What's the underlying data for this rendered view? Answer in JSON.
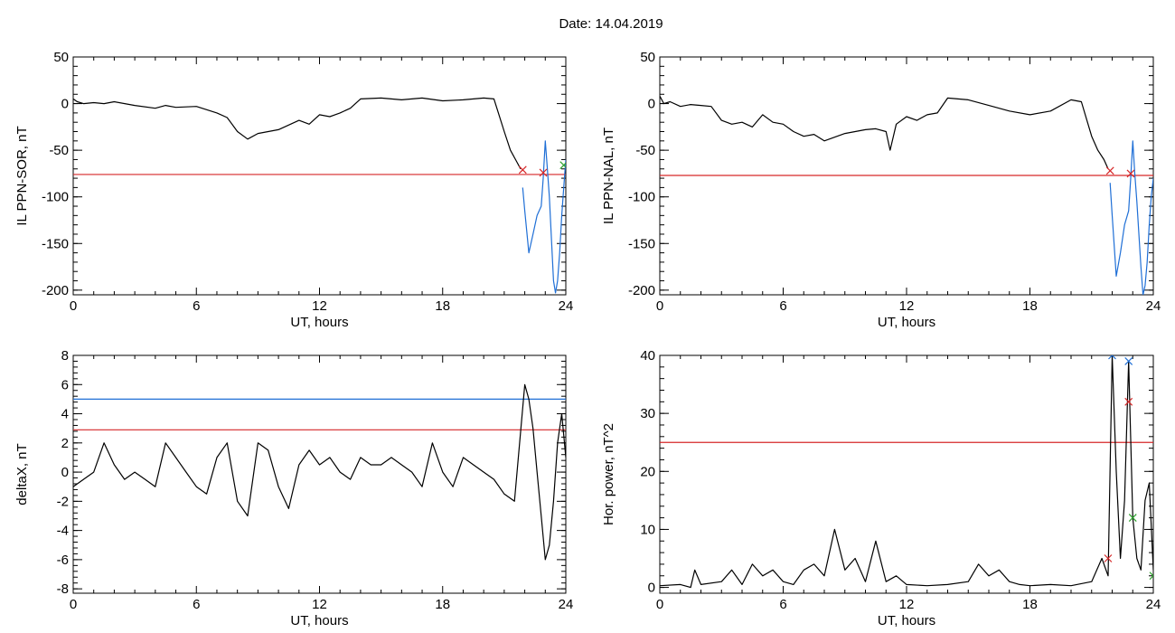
{
  "title": "Date:  14.04.2019",
  "colors": {
    "threshold": "#d62728",
    "upper": "#1f6fd6",
    "trace": "#000000",
    "marker_alt": "#2ca02c"
  },
  "chart_data": [
    {
      "type": "line",
      "ylabel": "IL PPN-SOR, nT",
      "xlabel": "UT, hours",
      "xlim": [
        0,
        24
      ],
      "ylim": [
        -205,
        50
      ],
      "xticks": [
        0,
        6,
        12,
        18,
        24
      ],
      "yticks": [
        -200,
        -150,
        -100,
        -50,
        0,
        50
      ],
      "series": [
        {
          "color": "#000000",
          "x": [
            0,
            0.2,
            0.5,
            1,
            1.5,
            2,
            3,
            4,
            4.5,
            5,
            6,
            7,
            7.5,
            8,
            8.5,
            9,
            10,
            11,
            11.5,
            12,
            12.5,
            13,
            13.5,
            14,
            15,
            16,
            17,
            18,
            19,
            20,
            20.5,
            21,
            21.3,
            21.6,
            21.8
          ],
          "y": [
            5,
            2,
            0,
            1,
            0,
            2,
            -2,
            -5,
            -2,
            -4,
            -3,
            -10,
            -15,
            -30,
            -38,
            -32,
            -28,
            -18,
            -22,
            -12,
            -14,
            -10,
            -5,
            5,
            6,
            4,
            6,
            3,
            4,
            6,
            5,
            -30,
            -50,
            -62,
            -70
          ]
        },
        {
          "color": "#1f6fd6",
          "x": [
            21.9,
            22,
            22.2,
            22.4,
            22.6,
            22.8,
            22.9,
            23,
            23.1,
            23.2,
            23.4,
            23.5,
            23.6,
            23.7,
            23.8,
            23.9,
            24
          ],
          "y": [
            -90,
            -115,
            -160,
            -140,
            -120,
            -110,
            -80,
            -40,
            -70,
            -100,
            -190,
            -203,
            -190,
            -160,
            -120,
            -90,
            -60
          ]
        }
      ],
      "hlines": [
        {
          "y": -76,
          "color": "#d62728"
        }
      ],
      "markers": [
        {
          "x": 21.9,
          "y": -71,
          "color": "#d62728"
        },
        {
          "x": 22.9,
          "y": -74,
          "color": "#d62728"
        },
        {
          "x": 23.9,
          "y": -66,
          "color": "#2ca02c"
        }
      ]
    },
    {
      "type": "line",
      "ylabel": "IL PPN-NAL, nT",
      "xlabel": "UT, hours",
      "xlim": [
        0,
        24
      ],
      "ylim": [
        -205,
        50
      ],
      "xticks": [
        0,
        6,
        12,
        18,
        24
      ],
      "yticks": [
        -200,
        -150,
        -100,
        -50,
        0,
        50
      ],
      "series": [
        {
          "color": "#000000",
          "x": [
            0,
            0.2,
            0.5,
            1,
            1.5,
            2,
            2.5,
            3,
            3.5,
            4,
            4.5,
            5,
            5.5,
            6,
            6.5,
            7,
            7.5,
            8,
            9,
            10,
            10.5,
            11,
            11.2,
            11.5,
            12,
            12.5,
            13,
            13.5,
            14,
            15,
            16,
            17,
            18,
            19,
            20,
            20.5,
            21,
            21.3,
            21.6,
            21.8
          ],
          "y": [
            8,
            0,
            2,
            -3,
            -1,
            -2,
            -3,
            -18,
            -22,
            -20,
            -25,
            -12,
            -20,
            -22,
            -30,
            -35,
            -33,
            -40,
            -32,
            -28,
            -27,
            -30,
            -50,
            -22,
            -14,
            -18,
            -12,
            -10,
            6,
            4,
            -2,
            -8,
            -12,
            -8,
            4,
            2,
            -35,
            -50,
            -60,
            -70
          ]
        },
        {
          "color": "#1f6fd6",
          "x": [
            21.9,
            22,
            22.2,
            22.4,
            22.6,
            22.8,
            22.9,
            23,
            23.1,
            23.2,
            23.4,
            23.5,
            23.6,
            23.7,
            23.8,
            23.9,
            24
          ],
          "y": [
            -85,
            -120,
            -185,
            -160,
            -130,
            -115,
            -80,
            -40,
            -75,
            -105,
            -175,
            -205,
            -195,
            -170,
            -130,
            -100,
            -80
          ]
        }
      ],
      "hlines": [
        {
          "y": -77,
          "color": "#d62728"
        }
      ],
      "markers": [
        {
          "x": 21.9,
          "y": -72,
          "color": "#d62728"
        },
        {
          "x": 22.9,
          "y": -75,
          "color": "#d62728"
        }
      ]
    },
    {
      "type": "line",
      "ylabel": "deltaX, nT",
      "xlabel": "UT, hours",
      "xlim": [
        0,
        24
      ],
      "ylim": [
        -8.3,
        8
      ],
      "xticks": [
        0,
        6,
        12,
        18,
        24
      ],
      "yticks": [
        -8,
        -6,
        -4,
        -2,
        0,
        2,
        4,
        6,
        8
      ],
      "series": [
        {
          "color": "#000000",
          "x": [
            0,
            0.5,
            1,
            1.5,
            2,
            2.5,
            3,
            3.5,
            4,
            4.5,
            5,
            5.5,
            6,
            6.5,
            7,
            7.5,
            8,
            8.5,
            9,
            9.5,
            10,
            10.5,
            11,
            11.5,
            12,
            12.5,
            13,
            13.5,
            14,
            14.5,
            15,
            15.5,
            16,
            16.5,
            17,
            17.5,
            18,
            18.5,
            19,
            19.5,
            20,
            20.5,
            21,
            21.5,
            22,
            22.2,
            22.4,
            22.6,
            22.8,
            23,
            23.2,
            23.4,
            23.6,
            23.8,
            24
          ],
          "y": [
            -1,
            -0.5,
            0,
            2,
            0.5,
            -0.5,
            0,
            -0.5,
            -1,
            2,
            1,
            0,
            -1,
            -1.5,
            1,
            2,
            -2,
            -3,
            2,
            1.5,
            -1,
            -2.5,
            0.5,
            1.5,
            0.5,
            1,
            0,
            -0.5,
            1,
            0.5,
            0.5,
            1,
            0.5,
            0,
            -1,
            2,
            0,
            -1,
            1,
            0.5,
            0,
            -0.5,
            -1.5,
            -2,
            6,
            5,
            3,
            0,
            -3,
            -6,
            -5,
            -2,
            2,
            4,
            1
          ]
        }
      ],
      "hlines": [
        {
          "y": 5,
          "color": "#1f6fd6"
        },
        {
          "y": 2.9,
          "color": "#d62728"
        }
      ],
      "markers": []
    },
    {
      "type": "line",
      "ylabel": "Hor. power, nT^2",
      "xlabel": "UT, hours",
      "xlim": [
        0,
        24
      ],
      "ylim": [
        -1,
        40
      ],
      "xticks": [
        0,
        6,
        12,
        18,
        24
      ],
      "yticks": [
        0,
        10,
        20,
        30,
        40
      ],
      "series": [
        {
          "color": "#000000",
          "x": [
            0,
            1,
            1.5,
            1.7,
            2,
            3,
            3.5,
            4,
            4.5,
            5,
            5.5,
            6,
            6.5,
            7,
            7.5,
            8,
            8.5,
            9,
            9.5,
            10,
            10.5,
            11,
            11.5,
            12,
            13,
            14,
            15,
            15.5,
            16,
            16.5,
            17,
            17.5,
            18,
            19,
            20,
            21,
            21.5,
            21.8,
            22,
            22.2,
            22.4,
            22.6,
            22.8,
            23,
            23.2,
            23.4,
            23.6,
            23.8,
            24
          ],
          "y": [
            0.3,
            0.5,
            0,
            3,
            0.5,
            1,
            3,
            0.5,
            4,
            2,
            3,
            1,
            0.5,
            3,
            4,
            2,
            10,
            3,
            5,
            1,
            8,
            1,
            2,
            0.5,
            0.3,
            0.5,
            1,
            4,
            2,
            3,
            1,
            0.5,
            0.3,
            0.5,
            0.3,
            1,
            5,
            2,
            40,
            20,
            5,
            15,
            39,
            12,
            5,
            3,
            15,
            18,
            3
          ]
        }
      ],
      "hlines": [
        {
          "y": 25,
          "color": "#d62728"
        }
      ],
      "markers": [
        {
          "x": 21.8,
          "y": 5,
          "color": "#d62728"
        },
        {
          "x": 22,
          "y": 40,
          "color": "#1f6fd6"
        },
        {
          "x": 22.8,
          "y": 39,
          "color": "#1f6fd6"
        },
        {
          "x": 22.8,
          "y": 32,
          "color": "#d62728"
        },
        {
          "x": 23,
          "y": 12,
          "color": "#2ca02c"
        },
        {
          "x": 24,
          "y": 2,
          "color": "#2ca02c"
        }
      ]
    }
  ]
}
